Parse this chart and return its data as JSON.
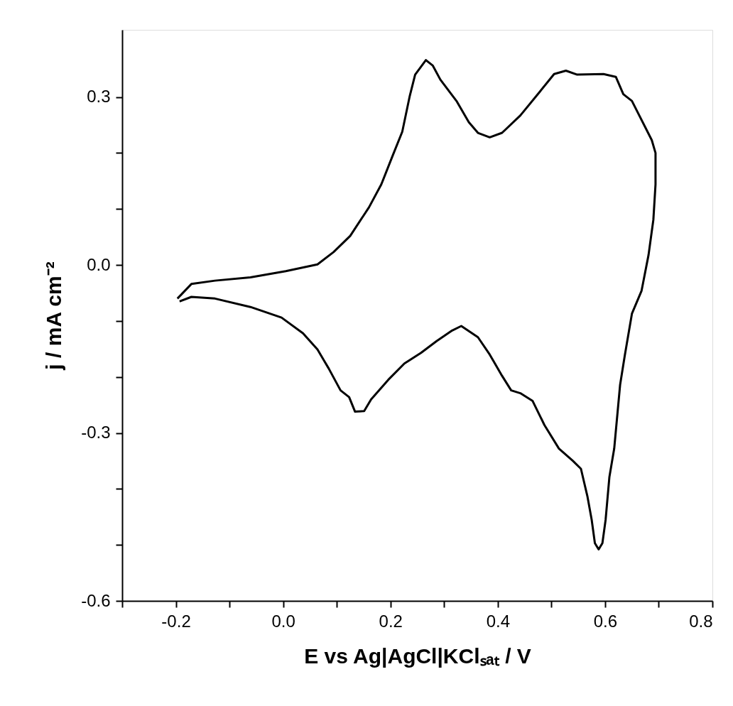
{
  "chart_data": {
    "type": "line",
    "xlabel": "E vs Ag|AgCl|KClₛₐₜ / V",
    "ylabel": "j / mA cm⁻²",
    "xlim": [
      -0.3,
      0.8
    ],
    "ylim": [
      -0.6,
      0.42
    ],
    "xticks": [
      {
        "value": -0.3,
        "label": null
      },
      -0.2,
      {
        "value": -0.1,
        "label": null
      },
      {
        "value": 0,
        "label": "0.0"
      },
      {
        "value": 0.1,
        "label": null
      },
      0.2,
      {
        "value": 0.3,
        "label": null
      },
      0.4,
      {
        "value": 0.5,
        "label": null
      },
      0.6,
      {
        "value": 0.7,
        "label": null
      },
      0.8
    ],
    "yticks": [
      -0.6,
      {
        "value": -0.5,
        "label": null
      },
      {
        "value": -0.4,
        "label": null
      },
      -0.3,
      {
        "value": -0.2,
        "label": null
      },
      {
        "value": -0.1,
        "label": null
      },
      {
        "value": 0,
        "label": "0.0"
      },
      {
        "value": 0.1,
        "label": null
      },
      {
        "value": 0.2,
        "label": null
      },
      0.3
    ],
    "grid": false,
    "marker": "none",
    "line_style": "solid",
    "series": [
      {
        "color": "#000000",
        "x": [
          -0.197,
          -0.171,
          -0.127,
          -0.061,
          0.005,
          0.064,
          0.094,
          0.125,
          0.16,
          0.183,
          0.204,
          0.222,
          0.236,
          0.246,
          0.266,
          0.279,
          0.293,
          0.323,
          0.346,
          0.363,
          0.385,
          0.408,
          0.442,
          0.478,
          0.505,
          0.527,
          0.548,
          0.597,
          0.62,
          0.634,
          0.65,
          0.687,
          0.694,
          0.694,
          0.69,
          0.681,
          0.668,
          0.65,
          0.637,
          0.628,
          0.617,
          0.608,
          0.601,
          0.595,
          0.588,
          0.581,
          0.575,
          0.567,
          0.555,
          0.54,
          0.514,
          0.487,
          0.465,
          0.442,
          0.425,
          0.408,
          0.385,
          0.363,
          0.332,
          0.315,
          0.286,
          0.257,
          0.226,
          0.196,
          0.164,
          0.151,
          0.134,
          0.123,
          0.107,
          0.085,
          0.064,
          0.037,
          -0.003,
          -0.061,
          -0.127,
          -0.171,
          -0.193
        ],
        "values": [
          -0.06,
          -0.034,
          -0.028,
          -0.022,
          -0.011,
          0.001,
          0.023,
          0.052,
          0.103,
          0.144,
          0.195,
          0.238,
          0.302,
          0.34,
          0.366,
          0.356,
          0.331,
          0.293,
          0.255,
          0.236,
          0.228,
          0.236,
          0.267,
          0.309,
          0.341,
          0.347,
          0.34,
          0.341,
          0.336,
          0.305,
          0.293,
          0.223,
          0.2,
          0.144,
          0.081,
          0.018,
          -0.046,
          -0.087,
          -0.16,
          -0.214,
          -0.328,
          -0.379,
          -0.455,
          -0.497,
          -0.508,
          -0.497,
          -0.455,
          -0.413,
          -0.364,
          -0.35,
          -0.328,
          -0.286,
          -0.243,
          -0.229,
          -0.224,
          -0.198,
          -0.16,
          -0.129,
          -0.109,
          -0.117,
          -0.136,
          -0.157,
          -0.176,
          -0.205,
          -0.24,
          -0.261,
          -0.262,
          -0.236,
          -0.224,
          -0.185,
          -0.151,
          -0.122,
          -0.094,
          -0.075,
          -0.06,
          -0.057,
          -0.065
        ]
      }
    ]
  }
}
